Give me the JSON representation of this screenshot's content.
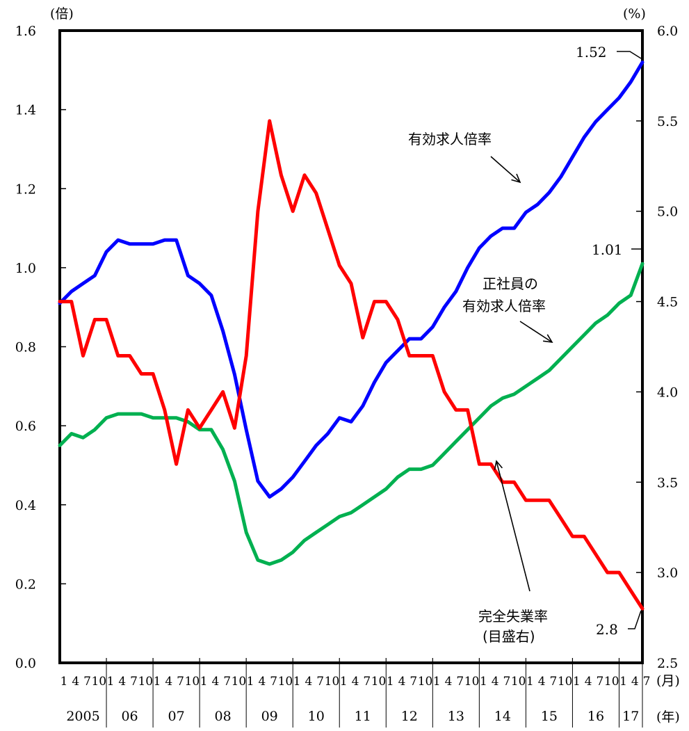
{
  "chart_data": {
    "type": "line",
    "left_axis": {
      "unit": "(倍)",
      "ylim": [
        0.0,
        1.6
      ],
      "ticks": [
        "0.0",
        "0.2",
        "0.4",
        "0.6",
        "0.8",
        "1.0",
        "1.2",
        "1.4",
        "1.6"
      ]
    },
    "right_axis": {
      "unit": "(%)",
      "ylim": [
        2.5,
        6.0
      ],
      "ticks": [
        "2.5",
        "3.0",
        "3.5",
        "4.0",
        "4.5",
        "5.0",
        "5.5",
        "6.0"
      ]
    },
    "x_month_unit": "(月)",
    "x_year_unit": "(年)",
    "years": [
      "2005",
      "06",
      "07",
      "08",
      "09",
      "10",
      "11",
      "12",
      "13",
      "14",
      "15",
      "16",
      "17"
    ],
    "month_ticks": [
      "1",
      "4",
      "7",
      "10"
    ],
    "last_year_month_ticks": [
      "1",
      "4",
      "7"
    ],
    "grid": false,
    "series": [
      {
        "name": "有効求人倍率",
        "axis": "left",
        "color": "#0000ff",
        "x": [
          "2005-01",
          "2005-04",
          "2005-07",
          "2005-10",
          "2006-01",
          "2006-04",
          "2006-07",
          "2006-10",
          "2007-01",
          "2007-04",
          "2007-07",
          "2007-10",
          "2008-01",
          "2008-04",
          "2008-07",
          "2008-10",
          "2009-01",
          "2009-04",
          "2009-07",
          "2009-10",
          "2010-01",
          "2010-04",
          "2010-07",
          "2010-10",
          "2011-01",
          "2011-04",
          "2011-07",
          "2011-10",
          "2012-01",
          "2012-04",
          "2012-07",
          "2012-10",
          "2013-01",
          "2013-04",
          "2013-07",
          "2013-10",
          "2014-01",
          "2014-04",
          "2014-07",
          "2014-10",
          "2015-01",
          "2015-04",
          "2015-07",
          "2015-10",
          "2016-01",
          "2016-04",
          "2016-07",
          "2016-10",
          "2017-01",
          "2017-04",
          "2017-07"
        ],
        "values": [
          0.91,
          0.94,
          0.96,
          0.98,
          1.04,
          1.07,
          1.06,
          1.06,
          1.06,
          1.07,
          1.07,
          0.98,
          0.96,
          0.93,
          0.84,
          0.73,
          0.59,
          0.46,
          0.42,
          0.44,
          0.47,
          0.51,
          0.55,
          0.58,
          0.62,
          0.61,
          0.65,
          0.71,
          0.76,
          0.79,
          0.82,
          0.82,
          0.85,
          0.9,
          0.94,
          1.0,
          1.05,
          1.08,
          1.1,
          1.1,
          1.14,
          1.16,
          1.19,
          1.23,
          1.28,
          1.33,
          1.37,
          1.4,
          1.43,
          1.47,
          1.52
        ]
      },
      {
        "name": "正社員の有効求人倍率",
        "axis": "left",
        "color": "#00b050",
        "x": [
          "2005-01",
          "2005-04",
          "2005-07",
          "2005-10",
          "2006-01",
          "2006-04",
          "2006-07",
          "2006-10",
          "2007-01",
          "2007-04",
          "2007-07",
          "2007-10",
          "2008-01",
          "2008-04",
          "2008-07",
          "2008-10",
          "2009-01",
          "2009-04",
          "2009-07",
          "2009-10",
          "2010-01",
          "2010-04",
          "2010-07",
          "2010-10",
          "2011-01",
          "2011-04",
          "2011-07",
          "2011-10",
          "2012-01",
          "2012-04",
          "2012-07",
          "2012-10",
          "2013-01",
          "2013-04",
          "2013-07",
          "2013-10",
          "2014-01",
          "2014-04",
          "2014-07",
          "2014-10",
          "2015-01",
          "2015-04",
          "2015-07",
          "2015-10",
          "2016-01",
          "2016-04",
          "2016-07",
          "2016-10",
          "2017-01",
          "2017-04",
          "2017-07"
        ],
        "values": [
          0.55,
          0.58,
          0.57,
          0.59,
          0.62,
          0.63,
          0.63,
          0.63,
          0.62,
          0.62,
          0.62,
          0.61,
          0.59,
          0.59,
          0.54,
          0.46,
          0.33,
          0.26,
          0.25,
          0.26,
          0.28,
          0.31,
          0.33,
          0.35,
          0.37,
          0.38,
          0.4,
          0.42,
          0.44,
          0.47,
          0.49,
          0.49,
          0.5,
          0.53,
          0.56,
          0.59,
          0.62,
          0.65,
          0.67,
          0.68,
          0.7,
          0.72,
          0.74,
          0.77,
          0.8,
          0.83,
          0.86,
          0.88,
          0.91,
          0.93,
          1.01
        ]
      },
      {
        "name": "完全失業率",
        "axis": "right",
        "color": "#ff0000",
        "x": [
          "2005-01",
          "2005-04",
          "2005-07",
          "2005-10",
          "2006-01",
          "2006-04",
          "2006-07",
          "2006-10",
          "2007-01",
          "2007-04",
          "2007-07",
          "2007-10",
          "2008-01",
          "2008-04",
          "2008-07",
          "2008-10",
          "2009-01",
          "2009-04",
          "2009-07",
          "2009-10",
          "2010-01",
          "2010-04",
          "2010-07",
          "2010-10",
          "2011-01",
          "2011-04",
          "2011-07",
          "2011-10",
          "2012-01",
          "2012-04",
          "2012-07",
          "2012-10",
          "2013-01",
          "2013-04",
          "2013-07",
          "2013-10",
          "2014-01",
          "2014-04",
          "2014-07",
          "2014-10",
          "2015-01",
          "2015-04",
          "2015-07",
          "2015-10",
          "2016-01",
          "2016-04",
          "2016-07",
          "2016-10",
          "2017-01",
          "2017-04",
          "2017-07"
        ],
        "values": [
          4.5,
          4.5,
          4.2,
          4.4,
          4.4,
          4.2,
          4.2,
          4.1,
          4.1,
          3.9,
          3.6,
          3.9,
          3.8,
          3.9,
          4.0,
          3.8,
          4.2,
          5.0,
          5.5,
          5.2,
          5.0,
          5.2,
          5.1,
          4.9,
          4.7,
          4.6,
          4.3,
          4.5,
          4.5,
          4.4,
          4.2,
          4.2,
          4.2,
          4.0,
          3.9,
          3.9,
          3.6,
          3.6,
          3.5,
          3.5,
          3.4,
          3.4,
          3.4,
          3.3,
          3.2,
          3.2,
          3.1,
          3.0,
          3.0,
          2.9,
          2.8
        ]
      }
    ],
    "annotations": {
      "blue_label": "有効求人倍率",
      "green_label_line1": "正社員の",
      "green_label_line2": "有効求人倍率",
      "red_label_line1": "完全失業率",
      "red_label_line2": "(目盛右)",
      "blue_end_value": "1.52",
      "green_end_value": "1.01",
      "red_end_value": "2.8"
    }
  }
}
